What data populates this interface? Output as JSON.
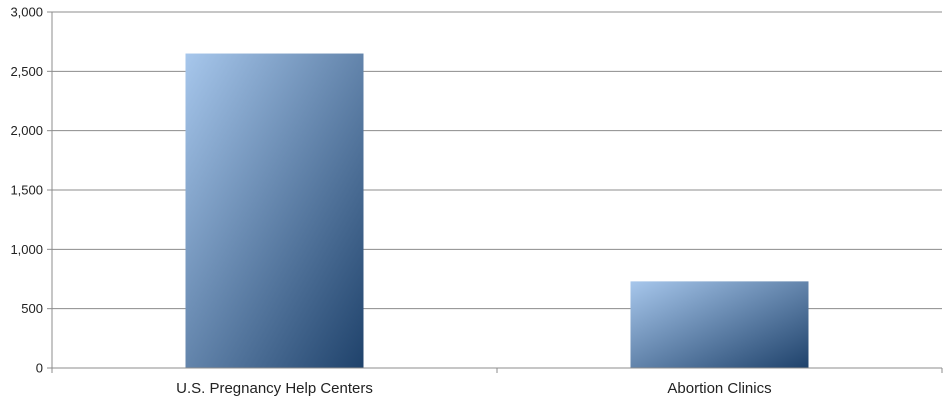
{
  "chart_data": {
    "type": "bar",
    "title": "",
    "xlabel": "",
    "ylabel": "",
    "categories": [
      "U.S. Pregnancy Help Centers",
      "Abortion Clinics"
    ],
    "values": [
      2650,
      730
    ],
    "ylim": [
      0,
      3000
    ],
    "yticks": [
      0,
      500,
      1000,
      1500,
      2000,
      2500,
      3000
    ],
    "ytick_labels": [
      "0",
      "500",
      "1,000",
      "1,500",
      "2,000",
      "2,500",
      "3,000"
    ],
    "grid": true,
    "legend": "none",
    "colors": {
      "bar_light": "#a7c7ec",
      "bar_dark": "#1f426b",
      "grid": "#8c8c8c",
      "axis": "#8c8c8c"
    }
  }
}
